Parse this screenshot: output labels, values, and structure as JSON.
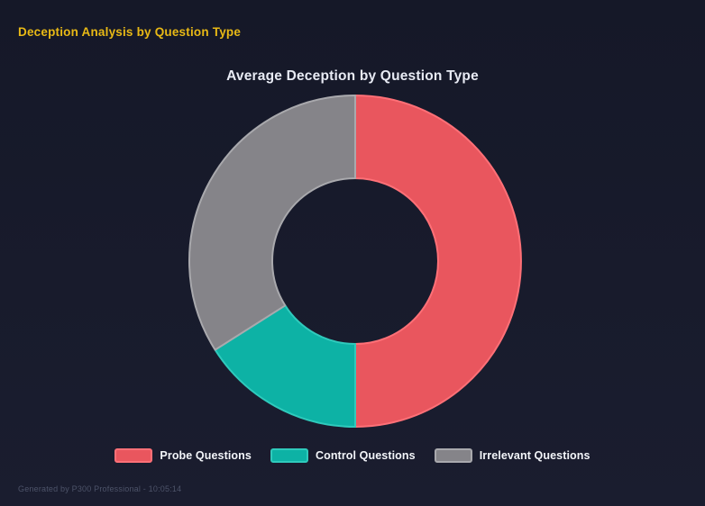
{
  "page": {
    "title": "Deception Analysis by Question Type",
    "footer": "Generated by P300 Professional - 10:05:14"
  },
  "chart_data": {
    "type": "pie",
    "subtype": "doughnut",
    "title": "Average Deception by Question Type",
    "categories": [
      "Probe Questions",
      "Control Questions",
      "Irrelevant Questions"
    ],
    "values": [
      50,
      16,
      34
    ],
    "values_note": "percent share estimated from arc angles (no numeric labels shown)",
    "colors": [
      "#e9565e",
      "#0db2a5",
      "#858489"
    ],
    "border_colors": [
      "#ff7077",
      "#2fcabc",
      "#a9a9ad"
    ],
    "legend_position": "bottom",
    "cutout": "50%",
    "start_angle_deg": 0,
    "direction": "clockwise"
  },
  "theme": {
    "background": "#171a2b",
    "heading_color": "#e9b915",
    "chart_title_color": "#e8ebf4",
    "legend_text_color": "#f3f5f9",
    "footer_color": "#4d5369"
  }
}
